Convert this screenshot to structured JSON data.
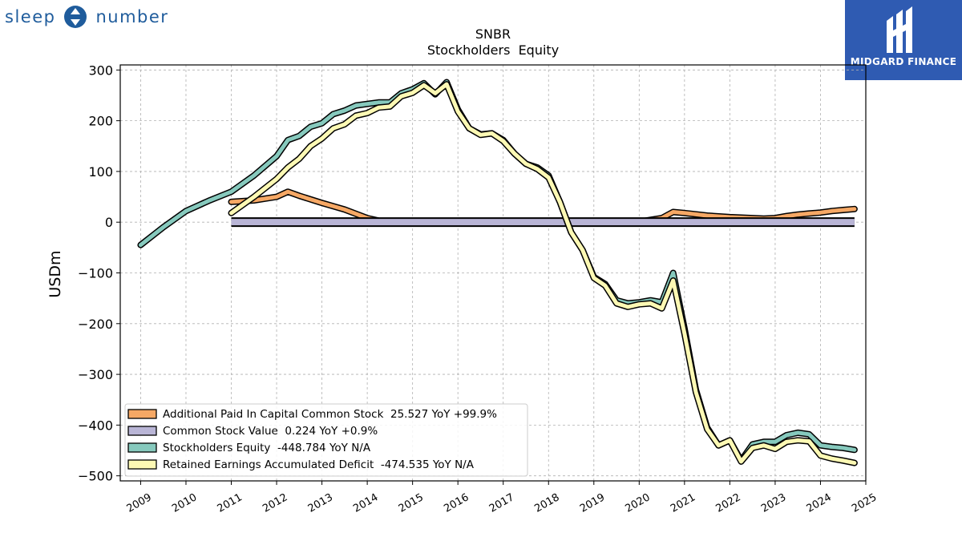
{
  "brand": {
    "left_text": "sleep",
    "right_text": "number"
  },
  "watermark": {
    "name": "MIDGARD FINANCE"
  },
  "colors": {
    "apic": "#f6a865",
    "common": "#b9b5d6",
    "equity": "#86c9bd",
    "retained": "#fdf9b4"
  },
  "chart_data": {
    "type": "line",
    "title": "SNBR",
    "subtitle": "Stockholders  Equity",
    "ylabel": "USDm",
    "xlabel": "",
    "xlim": [
      2008.55,
      2025.0
    ],
    "ylim": [
      -510,
      310
    ],
    "yticks": [
      300,
      200,
      100,
      0,
      -100,
      -200,
      -300,
      -400,
      -500
    ],
    "ytick_labels": [
      "300",
      "200",
      "100",
      "0",
      "−100",
      "−200",
      "−300",
      "−400",
      "−500"
    ],
    "xticks": [
      2009,
      2010,
      2011,
      2012,
      2013,
      2014,
      2015,
      2016,
      2017,
      2018,
      2019,
      2020,
      2021,
      2022,
      2023,
      2024,
      2025
    ],
    "grid": true,
    "legend_position": "lower-left",
    "series": [
      {
        "name": "Additional Paid In Capital Common Stock  25.527 YoY +99.9%",
        "color_key": "apic",
        "x": [
          2011.0,
          2011.5,
          2012.0,
          2012.25,
          2012.5,
          2013.0,
          2013.5,
          2014.0,
          2014.25,
          2014.5,
          2015.0,
          2016.0,
          2017.0,
          2018.0,
          2019.0,
          2020.0,
          2020.5,
          2020.75,
          2021.0,
          2021.5,
          2022.0,
          2022.5,
          2022.75,
          2023.0,
          2023.25,
          2023.5,
          2023.75,
          2024.0,
          2024.25,
          2024.5,
          2024.75
        ],
        "y": [
          40,
          43,
          50,
          60,
          52,
          38,
          25,
          8,
          3,
          1,
          1,
          1,
          1,
          1,
          1,
          1,
          8,
          20,
          18,
          13,
          10,
          8,
          7,
          8,
          12,
          15,
          17,
          19,
          22,
          24,
          26
        ]
      },
      {
        "name": "Common Stock Value  0.224 YoY +0.9%",
        "color_key": "common",
        "x": [
          2011.0,
          2024.75
        ],
        "y": [
          0.2,
          0.224
        ]
      },
      {
        "name": "Stockholders Equity  -448.784 YoY N/A",
        "color_key": "equity",
        "x": [
          2009.0,
          2009.5,
          2010.0,
          2010.5,
          2011.0,
          2011.5,
          2012.0,
          2012.25,
          2012.5,
          2012.75,
          2013.0,
          2013.25,
          2013.5,
          2013.75,
          2014.0,
          2014.25,
          2014.5,
          2014.75,
          2015.0,
          2015.25,
          2015.5,
          2015.75,
          2016.0,
          2016.25,
          2016.5,
          2016.75,
          2017.0,
          2017.25,
          2017.5,
          2017.75,
          2018.0,
          2018.25,
          2018.5,
          2018.75,
          2019.0,
          2019.25,
          2019.5,
          2019.75,
          2020.0,
          2020.25,
          2020.5,
          2020.75,
          2021.0,
          2021.25,
          2021.5,
          2021.75,
          2022.0,
          2022.25,
          2022.5,
          2022.75,
          2023.0,
          2023.25,
          2023.5,
          2023.75,
          2024.0,
          2024.25,
          2024.5,
          2024.75
        ],
        "y": [
          -45,
          -10,
          22,
          42,
          60,
          92,
          130,
          162,
          170,
          188,
          195,
          213,
          220,
          230,
          233,
          236,
          236,
          254,
          262,
          274,
          252,
          276,
          222,
          185,
          173,
          175,
          162,
          135,
          115,
          108,
          92,
          40,
          -20,
          -55,
          -108,
          -122,
          -154,
          -160,
          -158,
          -154,
          -158,
          -100,
          -210,
          -330,
          -405,
          -440,
          -430,
          -470,
          -438,
          -433,
          -433,
          -420,
          -415,
          -418,
          -440,
          -443,
          -445,
          -448.784
        ]
      },
      {
        "name": "Retained Earnings Accumulated Deficit  -474.535 YoY N/A",
        "color_key": "retained",
        "x": [
          2011.0,
          2011.5,
          2012.0,
          2012.25,
          2012.5,
          2012.75,
          2013.0,
          2013.25,
          2013.5,
          2013.75,
          2014.0,
          2014.25,
          2014.5,
          2014.75,
          2015.0,
          2015.25,
          2015.5,
          2015.75,
          2016.0,
          2016.25,
          2016.5,
          2016.75,
          2017.0,
          2017.25,
          2017.5,
          2017.75,
          2018.0,
          2018.25,
          2018.5,
          2018.75,
          2019.0,
          2019.25,
          2019.5,
          2019.75,
          2020.0,
          2020.25,
          2020.5,
          2020.75,
          2021.0,
          2021.25,
          2021.5,
          2021.75,
          2022.0,
          2022.25,
          2022.5,
          2022.75,
          2023.0,
          2023.25,
          2023.5,
          2023.75,
          2024.0,
          2024.25,
          2024.5,
          2024.75
        ],
        "y": [
          18,
          50,
          85,
          108,
          125,
          150,
          165,
          185,
          193,
          210,
          215,
          226,
          228,
          248,
          255,
          270,
          254,
          272,
          218,
          185,
          172,
          175,
          160,
          135,
          115,
          105,
          88,
          40,
          -20,
          -55,
          -110,
          -125,
          -160,
          -167,
          -162,
          -160,
          -170,
          -115,
          -220,
          -335,
          -408,
          -440,
          -430,
          -472,
          -445,
          -440,
          -447,
          -433,
          -430,
          -432,
          -460,
          -466,
          -470,
          -474.535
        ]
      }
    ]
  }
}
